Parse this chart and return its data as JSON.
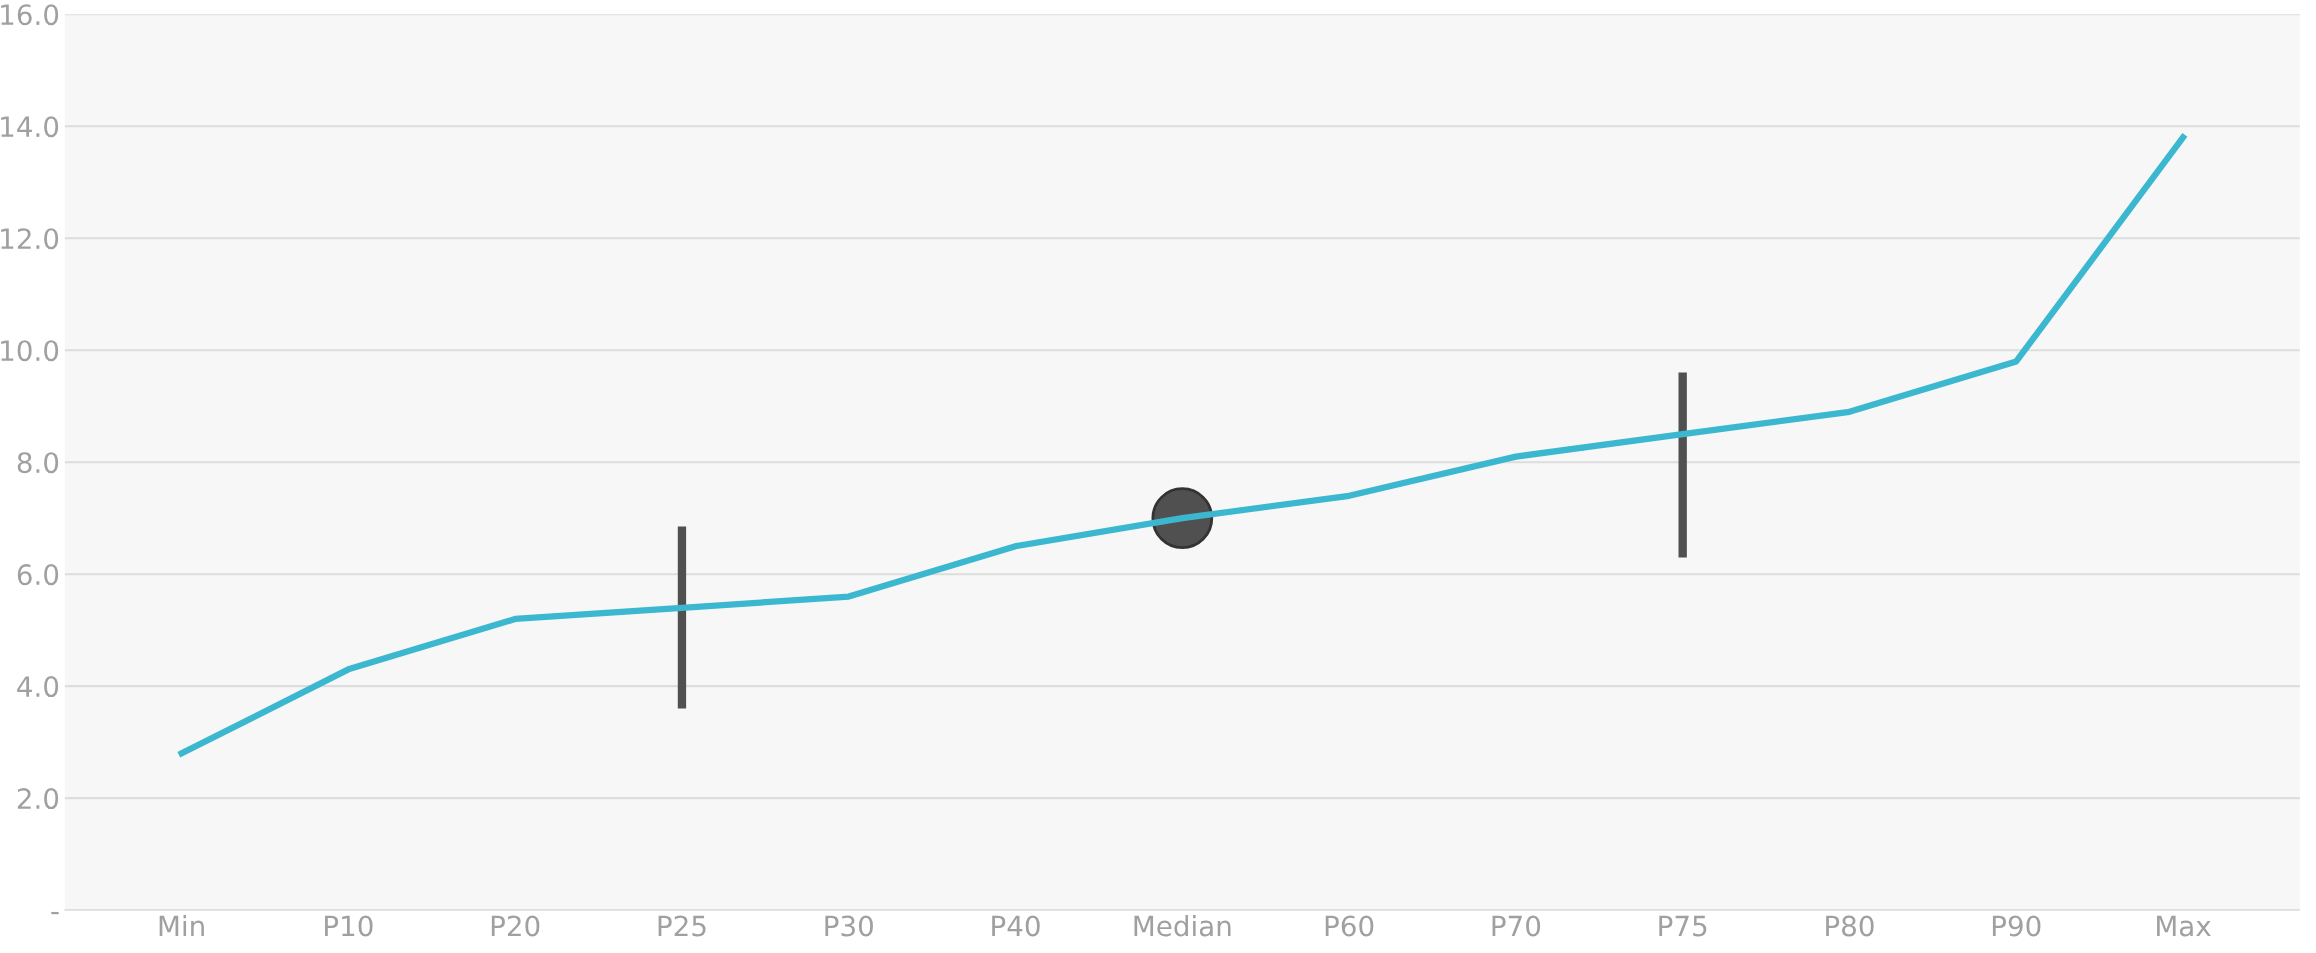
{
  "chart_data": {
    "type": "line",
    "categories": [
      "Min",
      "P10",
      "P20",
      "P25",
      "P30",
      "P40",
      "Median",
      "P60",
      "P70",
      "P75",
      "P80",
      "P90",
      "Max"
    ],
    "series": [
      {
        "color": "#3bb8cf",
        "values": [
          2.8,
          4.3,
          5.2,
          5.4,
          5.6,
          6.5,
          7.0,
          7.4,
          8.1,
          8.5,
          8.9,
          9.8,
          13.8
        ]
      },
      {
        "type": "bar",
        "color": "#505050",
        "values": [
          null,
          null,
          null,
          3.25,
          null,
          null,
          null,
          null,
          null,
          3.3,
          null,
          null,
          null
        ],
        "base": [
          null,
          null,
          null,
          3.6,
          null,
          null,
          null,
          null,
          null,
          6.3,
          null,
          null,
          null
        ]
      },
      {
        "type": "scatter",
        "color": "#505050",
        "marker": "circle",
        "values": [
          null,
          null,
          null,
          null,
          null,
          null,
          7.0,
          null,
          null,
          null,
          null,
          null,
          null
        ]
      }
    ],
    "ylim": [
      0,
      16
    ],
    "yticks": [
      {
        "value": 0,
        "label": "-"
      },
      {
        "value": 2,
        "label": "2.0"
      },
      {
        "value": 4,
        "label": "4.0"
      },
      {
        "value": 6,
        "label": "6.0"
      },
      {
        "value": 8,
        "label": "8.0"
      },
      {
        "value": 10,
        "label": "10.0"
      },
      {
        "value": 12,
        "label": "12.0"
      },
      {
        "value": 14,
        "label": "14.0"
      },
      {
        "value": 16,
        "label": "16.0"
      }
    ],
    "grid": "y"
  }
}
